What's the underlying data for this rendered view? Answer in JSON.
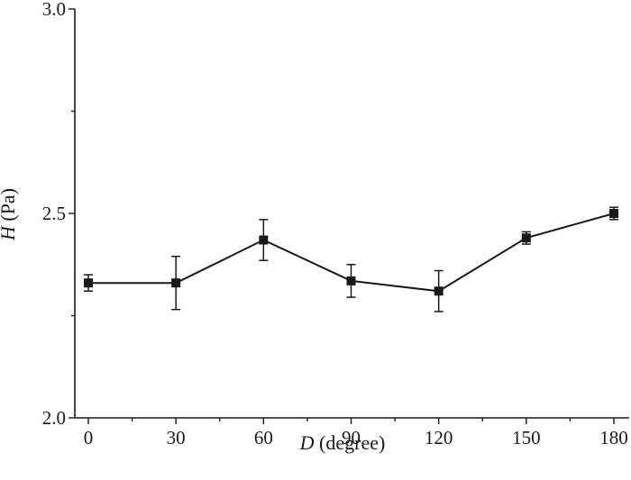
{
  "chart_data": {
    "type": "line",
    "title": "",
    "xlabel_var": "D",
    "xlabel_unit": " (degree)",
    "ylabel_var": "H",
    "ylabel_unit": " (Pa)",
    "xlim": [
      0,
      180
    ],
    "ylim": [
      2.0,
      3.0
    ],
    "x_ticks": [
      0,
      30,
      60,
      90,
      120,
      150,
      180
    ],
    "x_tick_labels": [
      "0",
      "30",
      "60",
      "90",
      "120",
      "150",
      "180"
    ],
    "y_ticks": [
      2.0,
      2.5,
      3.0
    ],
    "y_tick_labels": [
      "2.0",
      "2.5",
      "3.0"
    ],
    "grid": false,
    "series": [
      {
        "x": [
          0,
          30,
          60,
          90,
          120,
          150,
          180
        ],
        "y": [
          2.33,
          2.33,
          2.435,
          2.335,
          2.31,
          2.44,
          2.5
        ],
        "err": [
          0.02,
          0.065,
          0.05,
          0.04,
          0.05,
          0.015,
          0.015
        ],
        "color": "#1a1a1a",
        "marker": "square"
      }
    ]
  }
}
